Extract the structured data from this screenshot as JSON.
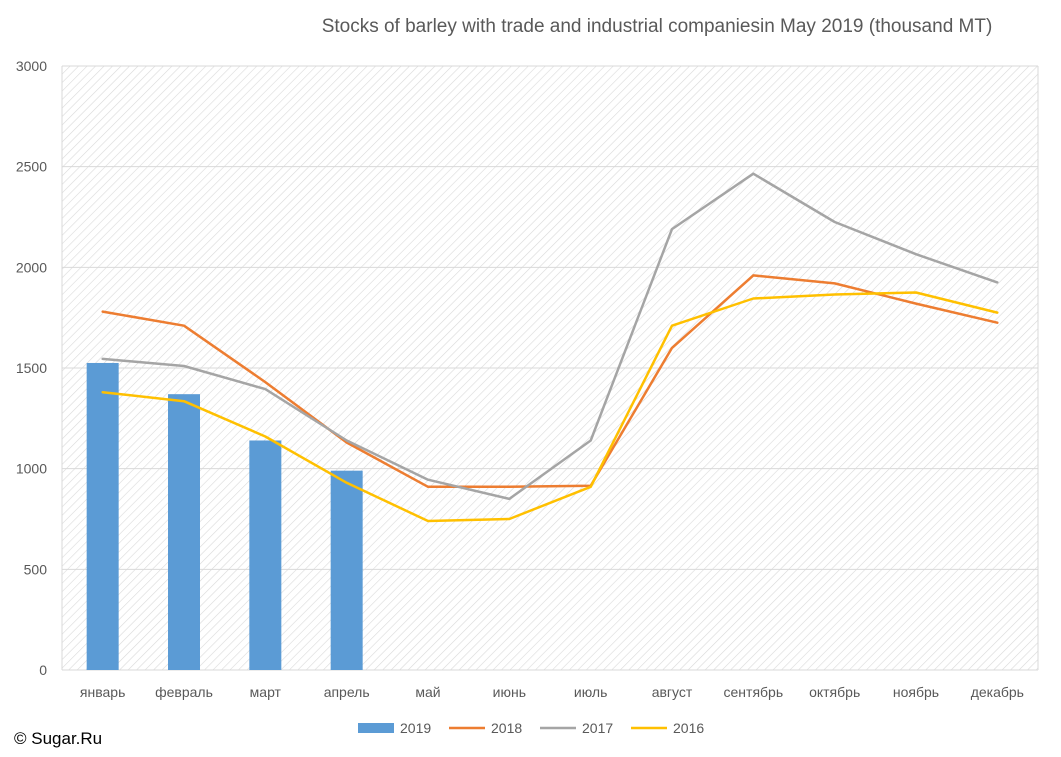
{
  "credit": "© Sugar.Ru",
  "chart_data": {
    "type": "bar",
    "title": "Stocks of barley with trade and industrial companiesin May 2019 (thousand MT)",
    "xlabel": "",
    "ylabel": "",
    "ylim": [
      0,
      3000
    ],
    "yticks": [
      0,
      500,
      1000,
      1500,
      2000,
      2500,
      3000
    ],
    "grid": true,
    "legend_position": "bottom",
    "categories": [
      "январь",
      "февраль",
      "март",
      "апрель",
      "май",
      "июнь",
      "июль",
      "август",
      "сентябрь",
      "октябрь",
      "ноябрь",
      "декабрь"
    ],
    "series": [
      {
        "name": "2019",
        "type": "bar",
        "color": "#5b9bd5",
        "values": [
          1525,
          1370,
          1140,
          990,
          null,
          null,
          null,
          null,
          null,
          null,
          null,
          null
        ]
      },
      {
        "name": "2018",
        "type": "line",
        "color": "#ed7d31",
        "values": [
          1780,
          1710,
          1430,
          1130,
          910,
          910,
          915,
          1600,
          1960,
          1920,
          1820,
          1725
        ]
      },
      {
        "name": "2017",
        "type": "line",
        "color": "#a5a5a5",
        "values": [
          1545,
          1510,
          1395,
          1140,
          945,
          850,
          1140,
          2190,
          2465,
          2225,
          2065,
          1925
        ]
      },
      {
        "name": "2016",
        "type": "line",
        "color": "#ffc000",
        "values": [
          1380,
          1335,
          1160,
          930,
          740,
          750,
          910,
          1710,
          1845,
          1865,
          1875,
          1775
        ]
      }
    ]
  }
}
